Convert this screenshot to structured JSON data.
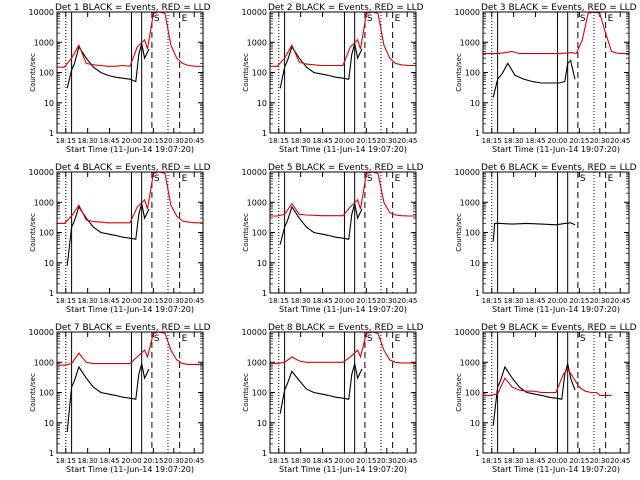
{
  "figure": {
    "x_tick_labels": [
      "18:15",
      "18:30",
      "18:45",
      "20:00",
      "20:15",
      "20:30",
      "20:45"
    ],
    "y_tick_labels": [
      "1",
      "10",
      "100",
      "1000",
      "10000"
    ],
    "ylabel": "Counts/sec",
    "xlabel": "Start Time (11-Jun-14 19:07:20)",
    "colors": {
      "events": "#000000",
      "lld": "#e00000",
      "frame": "#000000"
    }
  },
  "chart_data": [
    {
      "type": "line",
      "title": "Det 1  BLACK = Events,  RED = LLD",
      "ylabel": "Counts/sec",
      "xlabel": "Start Time (11-Jun-14 19:07:20)",
      "yscale": "log",
      "ylim": [
        1,
        10000
      ],
      "markers": {
        "labels": [
          "S",
          "E"
        ]
      },
      "series": [
        {
          "color": "black",
          "x": [
            0.07,
            0.1,
            0.12,
            0.15,
            0.2,
            0.25,
            0.3,
            0.35,
            0.4,
            0.45,
            0.5,
            0.54,
            0.56,
            0.58,
            0.6,
            0.63
          ],
          "y": [
            30,
            120,
            200,
            700,
            300,
            150,
            100,
            80,
            70,
            65,
            60,
            50,
            400,
            900,
            300,
            600
          ]
        },
        {
          "color": "red",
          "x": [
            0.0,
            0.05,
            0.1,
            0.15,
            0.2,
            0.25,
            0.3,
            0.35,
            0.4,
            0.45,
            0.5,
            0.55,
            0.6,
            0.62,
            0.66,
            0.7,
            0.74,
            0.78,
            0.82,
            0.86,
            0.9,
            0.95,
            1.0
          ],
          "y": [
            150,
            150,
            300,
            800,
            200,
            180,
            170,
            160,
            160,
            170,
            160,
            700,
            1200,
            600,
            9000,
            10000,
            9000,
            800,
            300,
            200,
            170,
            160,
            160
          ]
        }
      ]
    },
    {
      "type": "line",
      "title": "Det 2  BLACK = Events,  RED = LLD",
      "ylabel": "Counts/sec",
      "xlabel": "Start Time (11-Jun-14 19:07:20)",
      "yscale": "log",
      "ylim": [
        1,
        10000
      ],
      "markers": {
        "labels": [
          "S",
          "E"
        ]
      },
      "series": [
        {
          "color": "black",
          "x": [
            0.07,
            0.1,
            0.12,
            0.15,
            0.2,
            0.25,
            0.3,
            0.35,
            0.4,
            0.45,
            0.5,
            0.54,
            0.56,
            0.58,
            0.6,
            0.63
          ],
          "y": [
            30,
            150,
            250,
            700,
            300,
            150,
            100,
            90,
            80,
            70,
            65,
            60,
            400,
            900,
            300,
            600
          ]
        },
        {
          "color": "red",
          "x": [
            0.0,
            0.05,
            0.1,
            0.15,
            0.2,
            0.25,
            0.3,
            0.35,
            0.4,
            0.45,
            0.5,
            0.55,
            0.6,
            0.62,
            0.66,
            0.7,
            0.74,
            0.78,
            0.82,
            0.86,
            0.9,
            0.95,
            1.0
          ],
          "y": [
            160,
            160,
            300,
            800,
            220,
            190,
            180,
            170,
            170,
            170,
            170,
            700,
            1200,
            600,
            9000,
            10000,
            9000,
            800,
            300,
            200,
            180,
            170,
            170
          ]
        }
      ]
    },
    {
      "type": "line",
      "title": "Det 3  BLACK = Events,  RED = LLD",
      "ylabel": "Counts/sec",
      "xlabel": "Start Time (11-Jun-14 19:07:20)",
      "yscale": "log",
      "ylim": [
        1,
        10000
      ],
      "markers": {
        "labels": [
          "S",
          "E"
        ]
      },
      "series": [
        {
          "color": "black",
          "x": [
            0.07,
            0.1,
            0.13,
            0.17,
            0.22,
            0.28,
            0.34,
            0.4,
            0.46,
            0.52,
            0.56,
            0.58,
            0.6,
            0.63
          ],
          "y": [
            15,
            60,
            90,
            200,
            80,
            60,
            50,
            45,
            45,
            45,
            50,
            200,
            250,
            60
          ]
        },
        {
          "color": "red",
          "x": [
            0.0,
            0.05,
            0.1,
            0.15,
            0.2,
            0.25,
            0.3,
            0.35,
            0.4,
            0.45,
            0.5,
            0.55,
            0.6,
            0.64,
            0.68,
            0.72,
            0.76,
            0.8,
            0.84,
            0.88,
            0.92,
            0.96,
            1.0
          ],
          "y": [
            420,
            420,
            420,
            450,
            500,
            420,
            420,
            420,
            420,
            420,
            420,
            430,
            450,
            430,
            1200,
            9000,
            10000,
            9000,
            2000,
            500,
            430,
            420,
            420
          ]
        }
      ]
    },
    {
      "type": "line",
      "title": "Det 4  BLACK = Events,  RED = LLD",
      "ylabel": "Counts/sec",
      "xlabel": "Start Time (11-Jun-14 19:07:20)",
      "yscale": "log",
      "ylim": [
        1,
        10000
      ],
      "markers": {
        "labels": [
          "S",
          "E"
        ]
      },
      "series": [
        {
          "color": "black",
          "x": [
            0.07,
            0.1,
            0.12,
            0.15,
            0.2,
            0.25,
            0.3,
            0.35,
            0.4,
            0.45,
            0.5,
            0.54,
            0.56,
            0.58,
            0.6,
            0.63
          ],
          "y": [
            8,
            150,
            250,
            700,
            300,
            150,
            100,
            90,
            80,
            70,
            65,
            60,
            400,
            900,
            300,
            600
          ]
        },
        {
          "color": "red",
          "x": [
            0.0,
            0.05,
            0.1,
            0.15,
            0.2,
            0.25,
            0.3,
            0.35,
            0.4,
            0.45,
            0.5,
            0.55,
            0.6,
            0.62,
            0.66,
            0.7,
            0.74,
            0.78,
            0.82,
            0.86,
            0.9,
            0.95,
            1.0
          ],
          "y": [
            200,
            200,
            350,
            800,
            260,
            230,
            220,
            210,
            210,
            210,
            210,
            700,
            1200,
            600,
            9000,
            10000,
            9000,
            800,
            350,
            240,
            220,
            210,
            210
          ]
        }
      ]
    },
    {
      "type": "line",
      "title": "Det 5  BLACK = Events,  RED = LLD",
      "ylabel": "Counts/sec",
      "xlabel": "Start Time (11-Jun-14 19:07:20)",
      "yscale": "log",
      "ylim": [
        1,
        10000
      ],
      "markers": {
        "labels": [
          "S",
          "E"
        ]
      },
      "series": [
        {
          "color": "black",
          "x": [
            0.07,
            0.1,
            0.12,
            0.15,
            0.2,
            0.25,
            0.3,
            0.35,
            0.4,
            0.45,
            0.5,
            0.54,
            0.56,
            0.58,
            0.6,
            0.63
          ],
          "y": [
            40,
            150,
            250,
            700,
            300,
            150,
            100,
            90,
            80,
            70,
            65,
            60,
            400,
            900,
            300,
            600
          ]
        },
        {
          "color": "red",
          "x": [
            0.0,
            0.05,
            0.1,
            0.15,
            0.2,
            0.25,
            0.3,
            0.35,
            0.4,
            0.45,
            0.5,
            0.55,
            0.6,
            0.62,
            0.66,
            0.7,
            0.74,
            0.78,
            0.82,
            0.86,
            0.9,
            0.95,
            1.0
          ],
          "y": [
            350,
            350,
            400,
            900,
            400,
            380,
            370,
            360,
            360,
            360,
            360,
            700,
            1200,
            600,
            9000,
            10000,
            9000,
            1000,
            450,
            380,
            360,
            350,
            350
          ]
        }
      ]
    },
    {
      "type": "line",
      "title": "Det 6  BLACK = Events,  RED = LLD",
      "ylabel": "Counts/sec",
      "xlabel": "Start Time (11-Jun-14 19:07:20)",
      "yscale": "log",
      "ylim": [
        1,
        10000
      ],
      "markers": {
        "labels": [
          "S",
          "E"
        ]
      },
      "series": [
        {
          "color": "black",
          "x": [
            0.07,
            0.08,
            0.12,
            0.2,
            0.3,
            0.4,
            0.5,
            0.56,
            0.6,
            0.63
          ],
          "y": [
            50,
            200,
            200,
            190,
            200,
            190,
            180,
            200,
            210,
            180
          ]
        }
      ]
    },
    {
      "type": "line",
      "title": "Det 7  BLACK = Events,  RED = LLD",
      "ylabel": "Counts/sec",
      "xlabel": "Start Time (11-Jun-14 19:07:20)",
      "yscale": "log",
      "ylim": [
        1,
        10000
      ],
      "markers": {
        "labels": [
          "S",
          "E"
        ]
      },
      "series": [
        {
          "color": "black",
          "x": [
            0.07,
            0.1,
            0.12,
            0.15,
            0.2,
            0.25,
            0.3,
            0.35,
            0.4,
            0.45,
            0.5,
            0.54,
            0.56,
            0.58,
            0.6,
            0.63
          ],
          "y": [
            5,
            150,
            250,
            700,
            300,
            150,
            100,
            90,
            80,
            70,
            65,
            60,
            400,
            900,
            300,
            600
          ]
        },
        {
          "color": "red",
          "x": [
            0.0,
            0.05,
            0.1,
            0.15,
            0.2,
            0.25,
            0.3,
            0.35,
            0.4,
            0.45,
            0.5,
            0.55,
            0.6,
            0.62,
            0.66,
            0.7,
            0.74,
            0.78,
            0.82,
            0.86,
            0.9,
            0.95,
            1.0
          ],
          "y": [
            800,
            800,
            900,
            2000,
            1000,
            900,
            900,
            900,
            900,
            900,
            900,
            1500,
            2500,
            1500,
            9000,
            10000,
            9000,
            2500,
            1200,
            900,
            850,
            850,
            850
          ]
        }
      ]
    },
    {
      "type": "line",
      "title": "Det 8  BLACK = Events,  RED = LLD",
      "ylabel": "Counts/sec",
      "xlabel": "Start Time (11-Jun-14 19:07:20)",
      "yscale": "log",
      "ylim": [
        1,
        10000
      ],
      "markers": {
        "labels": [
          "S",
          "E"
        ]
      },
      "series": [
        {
          "color": "black",
          "x": [
            0.07,
            0.1,
            0.12,
            0.15,
            0.2,
            0.25,
            0.3,
            0.35,
            0.4,
            0.45,
            0.5,
            0.54,
            0.56,
            0.58,
            0.6,
            0.63
          ],
          "y": [
            20,
            120,
            200,
            500,
            250,
            130,
            100,
            90,
            80,
            70,
            65,
            60,
            400,
            900,
            300,
            600
          ]
        },
        {
          "color": "red",
          "x": [
            0.0,
            0.05,
            0.1,
            0.15,
            0.2,
            0.25,
            0.3,
            0.35,
            0.4,
            0.45,
            0.5,
            0.55,
            0.6,
            0.62,
            0.66,
            0.7,
            0.74,
            0.78,
            0.82,
            0.86,
            0.9,
            0.95,
            1.0
          ],
          "y": [
            900,
            900,
            1000,
            1500,
            1100,
            1000,
            1000,
            1000,
            1000,
            1000,
            1000,
            1500,
            2500,
            1500,
            9000,
            10000,
            9000,
            2500,
            1200,
            1000,
            950,
            950,
            950
          ]
        }
      ]
    },
    {
      "type": "line",
      "title": "Det 9  BLACK = Events,  RED = LLD",
      "ylabel": "Counts/sec",
      "xlabel": "Start Time (11-Jun-14 19:07:20)",
      "yscale": "log",
      "ylim": [
        1,
        10000
      ],
      "markers": {
        "labels": [
          "S",
          "E"
        ]
      },
      "series": [
        {
          "color": "black",
          "x": [
            0.07,
            0.1,
            0.12,
            0.15,
            0.2,
            0.25,
            0.3,
            0.35,
            0.4,
            0.45,
            0.5,
            0.54,
            0.56,
            0.58,
            0.6,
            0.63
          ],
          "y": [
            8,
            150,
            250,
            700,
            300,
            150,
            100,
            90,
            80,
            70,
            65,
            60,
            400,
            900,
            300,
            120
          ]
        },
        {
          "color": "red",
          "x": [
            0.0,
            0.05,
            0.1,
            0.15,
            0.2,
            0.25,
            0.3,
            0.35,
            0.4,
            0.45,
            0.5,
            0.55,
            0.58,
            0.62,
            0.66,
            0.7,
            0.74,
            0.78,
            0.8,
            0.84,
            0.88
          ],
          "y": [
            80,
            80,
            90,
            300,
            150,
            120,
            110,
            110,
            100,
            100,
            100,
            400,
            600,
            300,
            150,
            110,
            100,
            100,
            80,
            80,
            80
          ]
        }
      ]
    }
  ]
}
